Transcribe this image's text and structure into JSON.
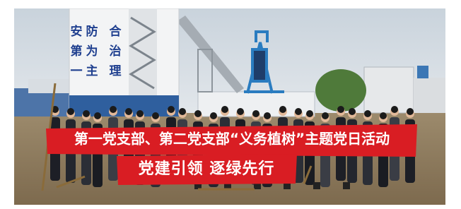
{
  "building_sign": {
    "rows": [
      [
        "安",
        "防",
        "合"
      ],
      [
        "第",
        "为",
        "治"
      ],
      [
        "一",
        "主",
        "理"
      ]
    ]
  },
  "banners": [
    {
      "text": "第一党支部、第二党支部“义务植树”主题党日活动"
    },
    {
      "text": "党建引领 逐绿先行"
    }
  ]
}
